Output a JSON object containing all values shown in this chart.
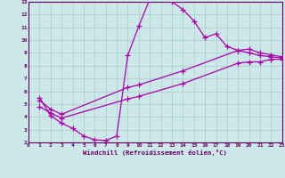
{
  "bg_color": "#cce8e8",
  "line_color": "#aa00aa",
  "xlabel": "Windchill (Refroidissement éolien,°C)",
  "xlim": [
    0,
    23
  ],
  "ylim": [
    2,
    13
  ],
  "xticks": [
    0,
    1,
    2,
    3,
    4,
    5,
    6,
    7,
    8,
    9,
    10,
    11,
    12,
    13,
    14,
    15,
    16,
    17,
    18,
    19,
    20,
    21,
    22,
    23
  ],
  "yticks": [
    2,
    3,
    4,
    5,
    6,
    7,
    8,
    9,
    10,
    11,
    12,
    13
  ],
  "curve1_x": [
    1,
    2,
    3,
    4,
    5,
    6,
    7,
    8,
    9,
    10,
    11,
    12,
    13,
    14,
    15,
    16,
    17,
    18,
    19,
    20,
    21,
    22,
    23
  ],
  "curve1_y": [
    5.5,
    4.1,
    3.5,
    3.1,
    2.5,
    2.2,
    2.15,
    2.5,
    8.8,
    11.1,
    13.2,
    13.45,
    13.0,
    12.4,
    11.5,
    10.2,
    10.5,
    9.5,
    9.2,
    9.0,
    8.8,
    8.7,
    8.6
  ],
  "curve2_x": [
    1,
    2,
    3,
    9,
    10,
    14,
    19,
    20,
    21,
    22,
    23
  ],
  "curve2_y": [
    5.3,
    4.6,
    4.2,
    6.3,
    6.5,
    7.6,
    9.2,
    9.3,
    9.0,
    8.85,
    8.7
  ],
  "curve3_x": [
    1,
    2,
    3,
    9,
    10,
    14,
    19,
    20,
    21,
    22,
    23
  ],
  "curve3_y": [
    4.8,
    4.3,
    3.9,
    5.4,
    5.6,
    6.6,
    8.2,
    8.3,
    8.3,
    8.5,
    8.5
  ]
}
